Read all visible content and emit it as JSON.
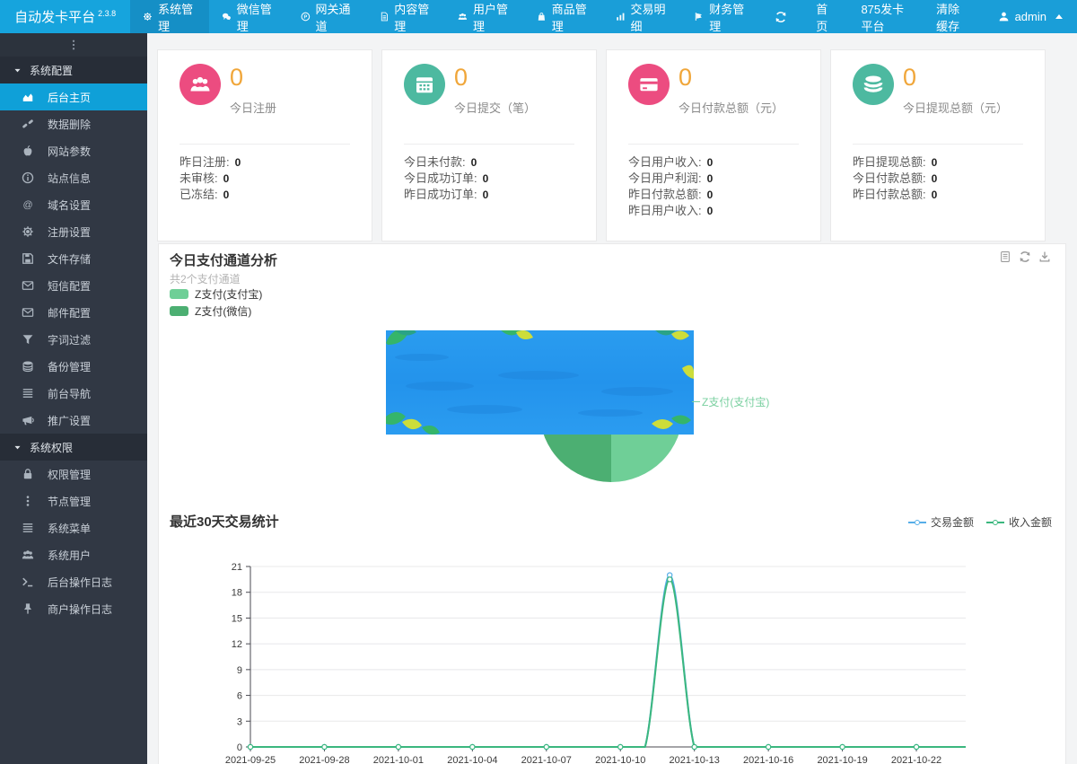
{
  "app": {
    "title": "自动发卡平台",
    "version": "2.3.8"
  },
  "colors": {
    "header_bg": "#1a9ed8",
    "logo_bg": "#16a4dd",
    "nav_active_bg": "#158fc6",
    "sidebar_bg": "#313844",
    "sidebar_active": "#0fa0d8",
    "accent_orange": "#f0a63a",
    "pink": "#ec4c80",
    "teal": "#4db9a0",
    "pie_light_green": "#6fcf97",
    "pie_dark_green": "#4caf72",
    "line_blue": "#56aee8",
    "line_green": "#3bb77e"
  },
  "topnav": {
    "items": [
      {
        "icon": "gear",
        "label": "系统管理",
        "active": true
      },
      {
        "icon": "wechat",
        "label": "微信管理",
        "active": false
      },
      {
        "icon": "p-circle",
        "label": "网关通道",
        "active": false
      },
      {
        "icon": "file",
        "label": "内容管理",
        "active": false
      },
      {
        "icon": "users",
        "label": "用户管理",
        "active": false
      },
      {
        "icon": "bag",
        "label": "商品管理",
        "active": false
      },
      {
        "icon": "bar-chart",
        "label": "交易明细",
        "active": false
      },
      {
        "icon": "flag",
        "label": "财务管理",
        "active": false
      }
    ],
    "right": {
      "refresh_icon": "refresh",
      "links": [
        "首页",
        "875发卡平台",
        "清除缓存"
      ],
      "user": {
        "icon": "user",
        "label": "admin"
      }
    }
  },
  "sidebar": {
    "groups": [
      {
        "label": "系统配置",
        "items": [
          {
            "icon": "chart-area",
            "label": "后台主页",
            "active": true
          },
          {
            "icon": "unlink",
            "label": "数据删除"
          },
          {
            "icon": "apple",
            "label": "网站参数"
          },
          {
            "icon": "info",
            "label": "站点信息"
          },
          {
            "icon": "at",
            "label": "域名设置"
          },
          {
            "icon": "gear",
            "label": "注册设置"
          },
          {
            "icon": "save",
            "label": "文件存储"
          },
          {
            "icon": "envelope",
            "label": "短信配置"
          },
          {
            "icon": "envelope",
            "label": "邮件配置"
          },
          {
            "icon": "filter",
            "label": "字词过滤"
          },
          {
            "icon": "database",
            "label": "备份管理"
          },
          {
            "icon": "bars",
            "label": "前台导航"
          },
          {
            "icon": "bullhorn",
            "label": "推广设置"
          }
        ]
      },
      {
        "label": "系统权限",
        "items": [
          {
            "icon": "lock",
            "label": "权限管理"
          },
          {
            "icon": "ellipsis-v",
            "label": "节点管理"
          },
          {
            "icon": "bars",
            "label": "系统菜单"
          },
          {
            "icon": "users",
            "label": "系统用户"
          },
          {
            "icon": "terminal",
            "label": "后台操作日志"
          },
          {
            "icon": "pin",
            "label": "商户操作日志"
          }
        ]
      }
    ]
  },
  "cards": [
    {
      "icon": "users",
      "circle_color": "#ec4c80",
      "value": "0",
      "label": "今日注册",
      "rows": [
        {
          "label": "昨日注册:",
          "value": "0"
        },
        {
          "label": "未审核:",
          "value": "0"
        },
        {
          "label": "已冻结:",
          "value": "0"
        }
      ]
    },
    {
      "icon": "calendar",
      "circle_color": "#4db9a0",
      "value": "0",
      "label": "今日提交（笔）",
      "rows": [
        {
          "label": "今日未付款:",
          "value": "0"
        },
        {
          "label": "今日成功订单:",
          "value": "0"
        },
        {
          "label": "昨日成功订单:",
          "value": "0"
        }
      ]
    },
    {
      "icon": "card",
      "circle_color": "#ec4c80",
      "value": "0",
      "label": "今日付款总额（元）",
      "rows": [
        {
          "label": "今日用户收入:",
          "value": "0"
        },
        {
          "label": "今日用户利润:",
          "value": "0"
        },
        {
          "label": "昨日付款总额:",
          "value": "0"
        },
        {
          "label": "昨日用户收入:",
          "value": "0"
        }
      ]
    },
    {
      "icon": "coins",
      "circle_color": "#4db9a0",
      "value": "0",
      "label": "今日提现总额（元）",
      "rows": [
        {
          "label": "昨日提现总额:",
          "value": "0"
        },
        {
          "label": "今日付款总额:",
          "value": "0"
        },
        {
          "label": "昨日付款总额:",
          "value": "0"
        }
      ]
    }
  ],
  "pie_section": {
    "title": "今日支付通道分析",
    "subtitle": "共2个支付通道",
    "legend": [
      {
        "label": "Z支付(支付宝)",
        "color": "#6fcf97"
      },
      {
        "label": "Z支付(微信)",
        "color": "#4caf72"
      }
    ],
    "toolbox": [
      "data-view",
      "refresh",
      "download"
    ],
    "callout_label": "Z支付(支付宝)"
  },
  "line_section": {
    "title": "最近30天交易统计",
    "legend": [
      {
        "label": "交易金额",
        "color": "#56aee8"
      },
      {
        "label": "收入金额",
        "color": "#3bb77e"
      }
    ]
  },
  "chart_data": [
    {
      "type": "pie",
      "title": "今日支付通道分析",
      "slices": [
        {
          "name": "Z支付(支付宝)",
          "value": 1,
          "color": "#6fcf97",
          "half": "right"
        },
        {
          "name": "Z支付(微信)",
          "value": 1,
          "color": "#4caf72",
          "half": "left"
        }
      ],
      "legend_position": "top-left"
    },
    {
      "type": "line",
      "title": "最近30天交易统计",
      "x": [
        "2021-09-25",
        "2021-09-26",
        "2021-09-27",
        "2021-09-28",
        "2021-09-29",
        "2021-09-30",
        "2021-10-01",
        "2021-10-02",
        "2021-10-03",
        "2021-10-04",
        "2021-10-05",
        "2021-10-06",
        "2021-10-07",
        "2021-10-08",
        "2021-10-09",
        "2021-10-10",
        "2021-10-11",
        "2021-10-12",
        "2021-10-13",
        "2021-10-14",
        "2021-10-15",
        "2021-10-16",
        "2021-10-17",
        "2021-10-18",
        "2021-10-19",
        "2021-10-20",
        "2021-10-21",
        "2021-10-22",
        "2021-10-23",
        "2021-10-24"
      ],
      "x_label_interval": 3,
      "series": [
        {
          "name": "交易金额",
          "color": "#56aee8",
          "values": [
            0,
            0,
            0,
            0,
            0,
            0,
            0,
            0,
            0,
            0,
            0,
            0,
            0,
            0,
            0,
            0,
            0,
            20,
            0,
            0,
            0,
            0,
            0,
            0,
            0,
            0,
            0,
            0,
            0,
            0
          ]
        },
        {
          "name": "收入金额",
          "color": "#3bb77e",
          "values": [
            0,
            0,
            0,
            0,
            0,
            0,
            0,
            0,
            0,
            0,
            0,
            0,
            0,
            0,
            0,
            0,
            0,
            19.5,
            0,
            0,
            0,
            0,
            0,
            0,
            0,
            0,
            0,
            0,
            0,
            0
          ]
        }
      ],
      "ylim": [
        0,
        21
      ],
      "y_ticks": [
        0,
        3,
        6,
        9,
        12,
        15,
        18,
        21
      ],
      "grid": true,
      "legend_position": "top-right"
    }
  ]
}
